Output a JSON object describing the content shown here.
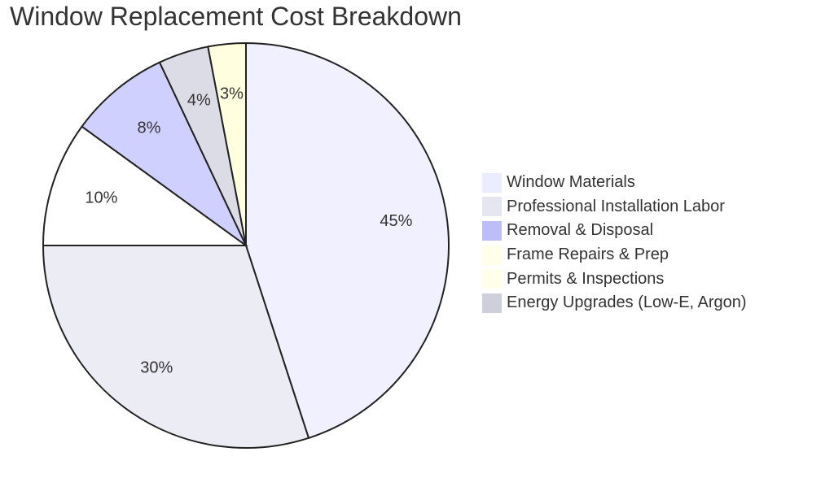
{
  "chart_data": {
    "type": "pie",
    "title": "Window Replacement Cost Breakdown",
    "slices": [
      {
        "label": "Window Materials",
        "value": 45,
        "display": "45%",
        "color": "#F0F0FF"
      },
      {
        "label": "Professional Installation Labor",
        "value": 30,
        "display": "30%",
        "color": "#ECECF4"
      },
      {
        "label": "Removal & Disposal",
        "value": 8,
        "display": "8%",
        "color": "#D0D0FF"
      },
      {
        "label": "Frame Repairs & Prep",
        "value": 10,
        "display": "10%",
        "color": "#FFFFFF"
      },
      {
        "label": "Permits & Inspections",
        "value": 3,
        "display": "3%",
        "color": "#FFFFE0"
      },
      {
        "label": "Energy Upgrades (Low-E, Argon)",
        "value": 4,
        "display": "4%",
        "color": "#DCDCE6"
      }
    ],
    "legend_swatches": [
      "#ECECFF",
      "#E6E6F0",
      "#BDBDF8",
      "#FFFFEA",
      "#FFFFEA",
      "#CFCFDC"
    ],
    "slice_order": [
      0,
      1,
      3,
      2,
      5,
      4
    ],
    "legend_position": "right",
    "stroke_color": "#222222"
  }
}
